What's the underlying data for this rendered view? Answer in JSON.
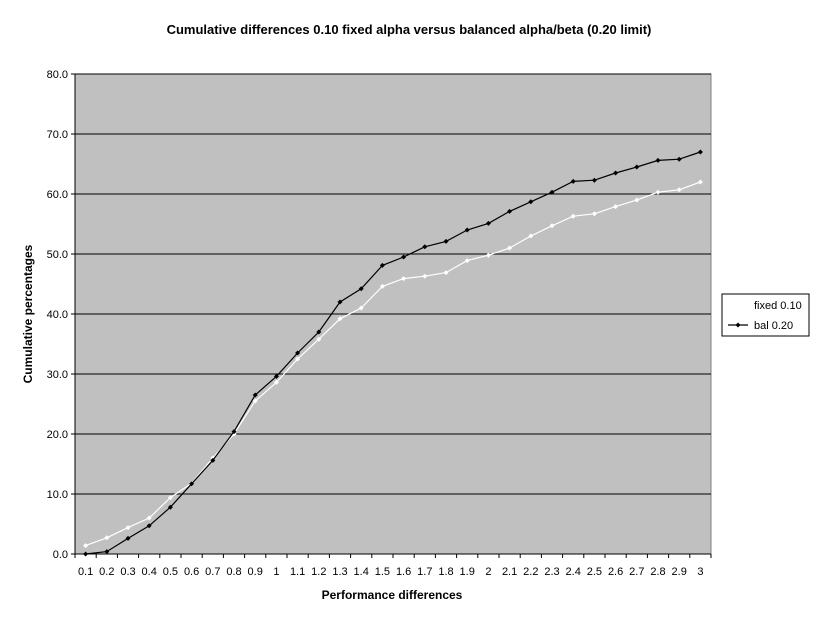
{
  "chart_data": {
    "type": "line",
    "title": "Cumulative differences 0.10 fixed alpha versus balanced alpha/beta (0.20 limit)",
    "xlabel": "Performance differences",
    "ylabel": "Cumulative percentages",
    "ylim": [
      0,
      80
    ],
    "ytick_labels": [
      "0.0",
      "10.0",
      "20.0",
      "30.0",
      "40.0",
      "50.0",
      "60.0",
      "70.0",
      "80.0"
    ],
    "categories": [
      "0.1",
      "0.2",
      "0.3",
      "0.4",
      "0.5",
      "0.6",
      "0.7",
      "0.8",
      "0.9",
      "1",
      "1.1",
      "1.2",
      "1.3",
      "1.4",
      "1.5",
      "1.6",
      "1.7",
      "1.8",
      "1.9",
      "2",
      "2.1",
      "2.2",
      "2.3",
      "2.4",
      "2.5",
      "2.6",
      "2.7",
      "2.8",
      "2.9",
      "3"
    ],
    "grid": true,
    "legend_position": "right",
    "plot_background": "#c0c0c0",
    "series": [
      {
        "name": "fixed 0.10",
        "color": "#ffffff",
        "values": [
          1.4,
          2.7,
          4.4,
          6.0,
          9.4,
          11.8,
          16.0,
          20.0,
          25.5,
          28.6,
          32.5,
          35.8,
          39.2,
          41.0,
          44.6,
          45.9,
          46.3,
          46.9,
          48.9,
          49.8,
          51.0,
          53.0,
          54.7,
          56.3,
          56.7,
          57.9,
          59.0,
          60.3,
          60.7,
          62.0
        ]
      },
      {
        "name": "bal 0.20",
        "color": "#000000",
        "values": [
          0.0,
          0.4,
          2.6,
          4.7,
          7.8,
          11.7,
          15.6,
          20.4,
          26.5,
          29.6,
          33.5,
          37.0,
          42.0,
          44.2,
          48.1,
          49.5,
          51.2,
          52.1,
          54.0,
          55.1,
          57.1,
          58.7,
          60.3,
          62.1,
          62.3,
          63.5,
          64.5,
          65.6,
          65.8,
          67.0
        ]
      }
    ]
  }
}
